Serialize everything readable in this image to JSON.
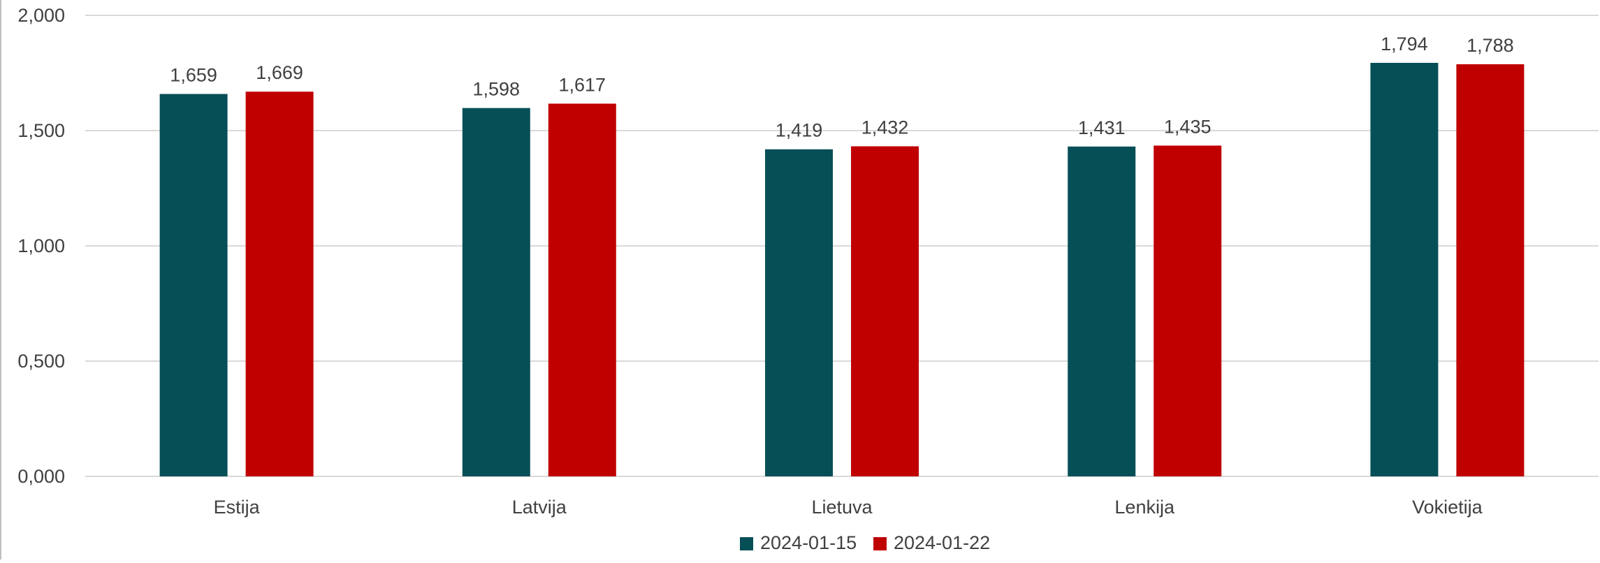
{
  "chart_data": {
    "type": "bar",
    "title": "",
    "xlabel": "",
    "ylabel": "",
    "categories": [
      "Estija",
      "Latvija",
      "Lietuva",
      "Lenkija",
      "Vokietija"
    ],
    "series": [
      {
        "name": "2024-01-15",
        "color": "#074f57",
        "values": [
          1.659,
          1.598,
          1.419,
          1.431,
          1.794
        ],
        "labels": [
          "1,659",
          "1,598",
          "1,419",
          "1,431",
          "1,794"
        ]
      },
      {
        "name": "2024-01-22",
        "color": "#c00000",
        "values": [
          1.669,
          1.617,
          1.432,
          1.435,
          1.788
        ],
        "labels": [
          "1,669",
          "1,617",
          "1,432",
          "1,435",
          "1,788"
        ]
      }
    ],
    "ylim": [
      0,
      2
    ],
    "yticks": [
      0,
      0.5,
      1,
      1.5,
      2
    ],
    "ytick_labels": [
      "0,000",
      "0,500",
      "1,000",
      "1,500",
      "2,000"
    ],
    "grid": true,
    "legend_position": "bottom-center",
    "gridline_color": "#d9d9d9"
  }
}
